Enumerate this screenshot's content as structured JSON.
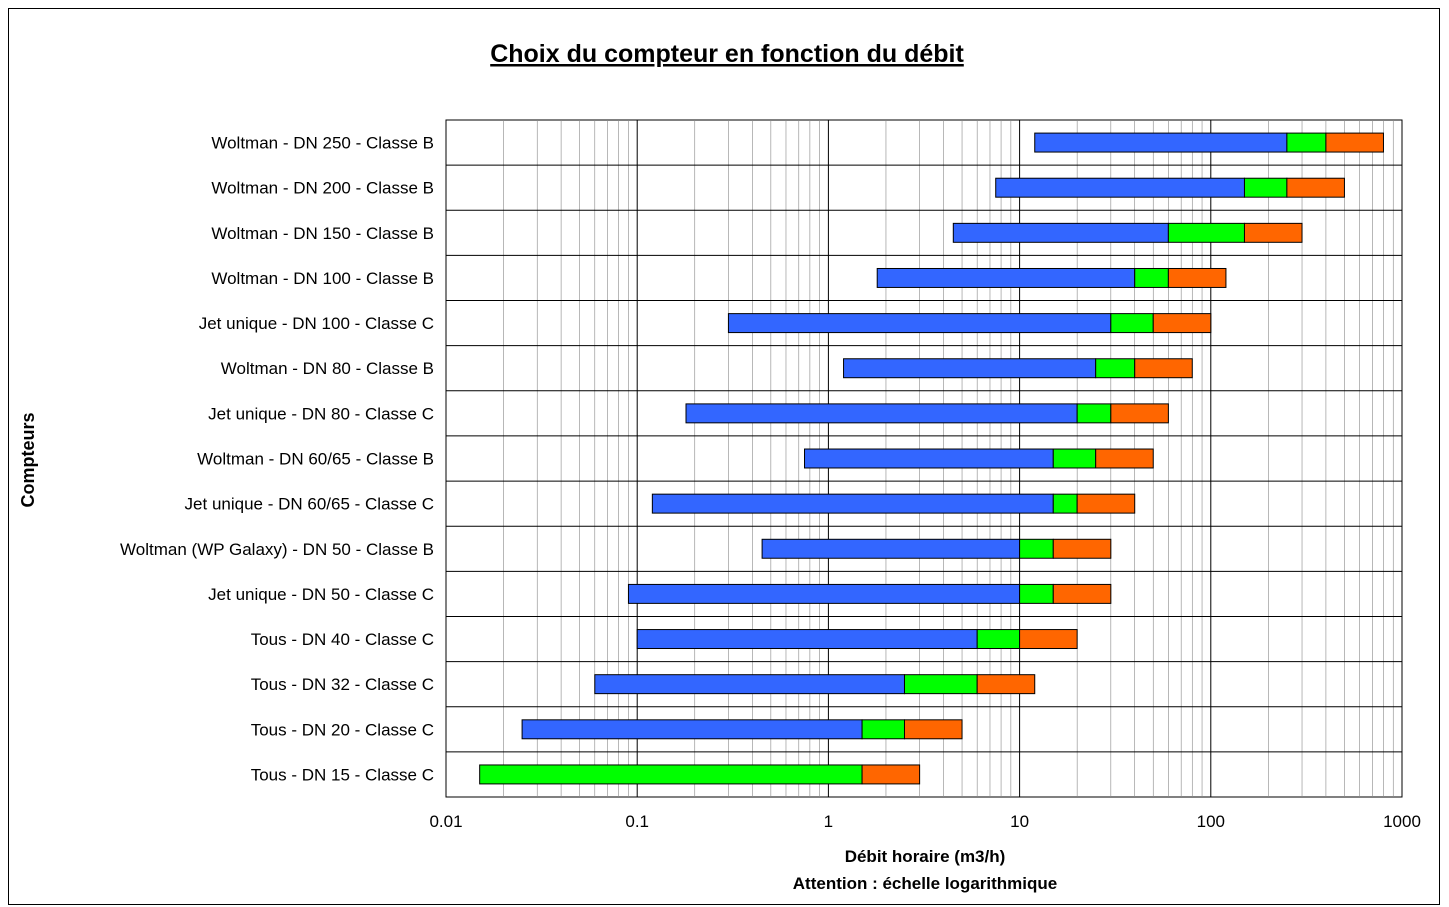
{
  "chart_data": {
    "type": "bar",
    "orientation": "horizontal",
    "stacked": true,
    "title": "Choix du compteur en fonction du débit",
    "xlabel": "Débit horaire (m3/h)",
    "xlabel_note": "Attention : échelle logarithmique",
    "ylabel": "Compteurs",
    "xscale": "log",
    "xlim": [
      0.01,
      1000
    ],
    "xticks": [
      "0.01",
      "0.1",
      "1",
      "10",
      "100",
      "1000"
    ],
    "grid": true,
    "legend": "none",
    "segment_colors": [
      "#3366ff",
      "#00ff00",
      "#ff6600"
    ],
    "categories": [
      "Woltman - DN 250 - Classe B",
      "Woltman - DN 200 - Classe B",
      "Woltman - DN 150 - Classe B",
      "Woltman - DN 100 - Classe B",
      "Jet unique - DN 100 - Classe C",
      "Woltman - DN 80 - Classe B",
      "Jet unique - DN 80 - Classe C",
      "Woltman - DN 60/65 - Classe B",
      "Jet unique - DN 60/65 - Classe C",
      "Woltman (WP Galaxy) - DN 50 - Classe B",
      "Jet unique - DN 50 - Classe C",
      "Tous - DN 40 - Classe C",
      "Tous - DN 32 - Classe C",
      "Tous - DN 20 - Classe C",
      "Tous - DN 15 - Classe C"
    ],
    "ranges": [
      [
        12,
        250,
        400,
        800
      ],
      [
        7.5,
        150,
        250,
        500
      ],
      [
        4.5,
        60,
        150,
        300
      ],
      [
        1.8,
        40,
        60,
        120
      ],
      [
        0.3,
        30,
        50,
        100
      ],
      [
        1.2,
        25,
        40,
        80
      ],
      [
        0.18,
        20,
        30,
        60
      ],
      [
        0.75,
        15,
        25,
        50
      ],
      [
        0.12,
        15,
        20,
        40
      ],
      [
        0.45,
        10,
        15,
        30
      ],
      [
        0.09,
        10,
        15,
        30
      ],
      [
        0.1,
        6,
        10,
        20
      ],
      [
        0.06,
        2.5,
        6,
        12
      ],
      [
        0.025,
        1.5,
        2.5,
        5
      ],
      [
        0.015,
        0.015,
        1.5,
        3
      ]
    ]
  }
}
